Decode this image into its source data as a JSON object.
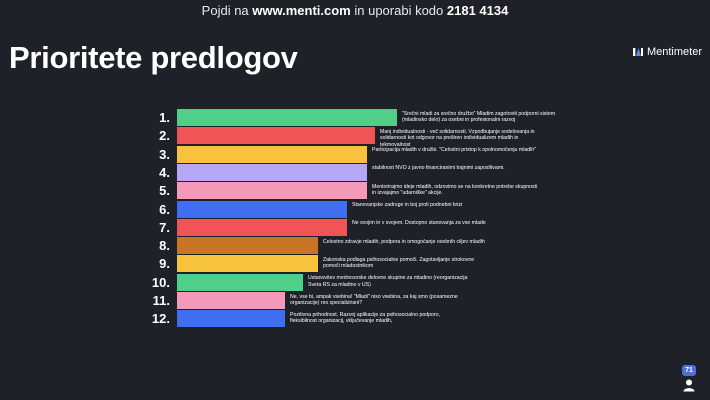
{
  "header": {
    "prefix": "Pojdi na ",
    "url": "www.menti.com",
    "middle": " in uporabi kodo ",
    "code": "2181 4134"
  },
  "slide": {
    "title": "Prioritete predlogov"
  },
  "brand": {
    "name": "Mentimeter",
    "icon": "mentimeter-logo-icon"
  },
  "participants": {
    "count": "71",
    "icon": "person-icon"
  },
  "chart_data": {
    "type": "bar",
    "orientation": "horizontal",
    "ranks": [
      "1.",
      "2.",
      "3.",
      "4.",
      "5.",
      "6.",
      "7.",
      "8.",
      "9.",
      "10.",
      "11.",
      "12."
    ],
    "values": [
      220,
      198,
      190,
      190,
      190,
      170,
      170,
      141,
      141,
      126,
      108,
      108
    ],
    "colors": [
      "#4fcf8a",
      "#f05454",
      "#f7c23c",
      "#b4a8f4",
      "#f49ab8",
      "#3f6ff0",
      "#f05454",
      "#c87424",
      "#f7c23c",
      "#4fcf8a",
      "#f49ab8",
      "#3f6ff0"
    ],
    "labels": [
      "\"Srečni mladi za srečno družbo\" Mladim zagotoviti podporni sistem (mladinsko delo) za osebni in profesionalni razvoj",
      "Manj individualnosti - več solidarnosti. Vzpodbujanje sodelovanja in solidarnosti kot odgovor na preširen individualizem mladih in tekmovalnost",
      "Participacija mladih v družbi. \"Celostni pristop k opolnomočenju mladih\"",
      "stabilnost NVO z javno financiranimi trajnimi zaposlitvami.",
      "Mentorirajmo ideje mladih, odzovimo se na konkretne potrebe skupnosti in izvajajmo \"udarniške\" akcije.",
      "Stanovanjske zadruge in boj proti podnebni krizi",
      "Ne svojim in v svojem. Dostopno stanovanja za vse mlade",
      "Celostno zdravje mladih, podpora in omogočanje osebnih ciljev mladih",
      "Zakonska podlaga psihosocialne pomoči. Zagotavljanje strokovne pomoči mladostnikom",
      "Ustanovitev medresorske delovne skupine za mladino (reorganizacija Sveta RS za mladino v US)",
      "Ne, vse bi, ampak vsebina! \"Mladi\" niso vsebina, za kaj smo (posamezne organizacije) res specializirani?",
      "Pozitivna prihodnost. Razvoj aplikacije za psihosocialno podporo, fleksibilnost organizacij, vključevanje mladih,"
    ]
  }
}
